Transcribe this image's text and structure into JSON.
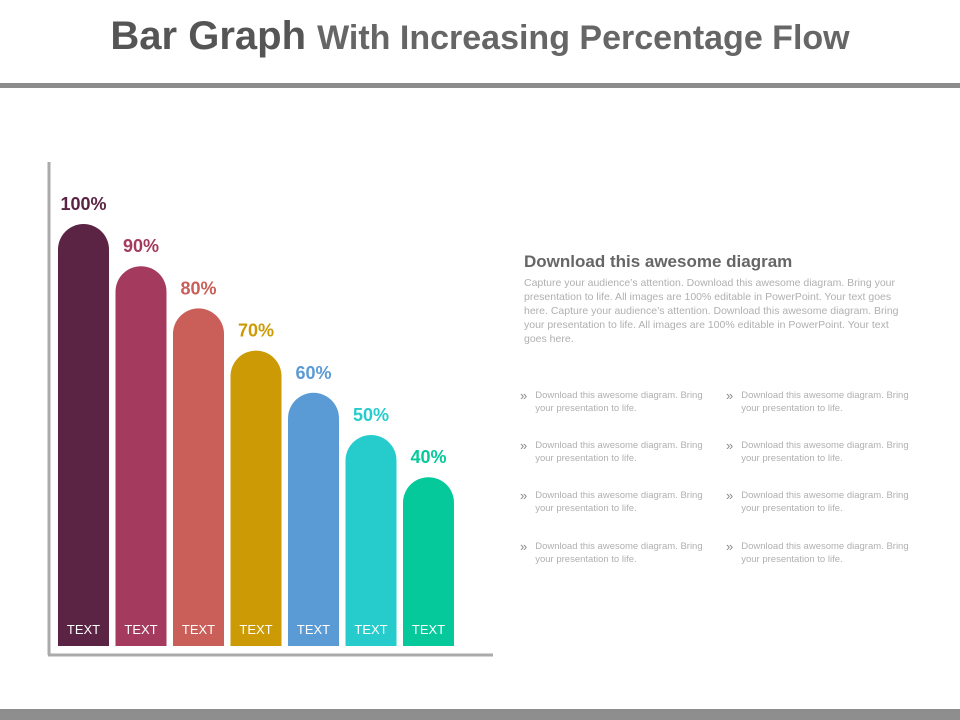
{
  "header": {
    "title_lead": "Bar Graph",
    "title_rest": "With Increasing Percentage Flow"
  },
  "chart_data": {
    "type": "bar",
    "categories": [
      "TEXT",
      "TEXT",
      "TEXT",
      "TEXT",
      "TEXT",
      "TEXT",
      "TEXT"
    ],
    "values": [
      100,
      90,
      80,
      70,
      60,
      50,
      40
    ],
    "value_labels": [
      "100%",
      "90%",
      "80%",
      "70%",
      "60%",
      "50%",
      "40%"
    ],
    "colors": [
      "#5c2444",
      "#a43a5d",
      "#ca5e58",
      "#cc9a05",
      "#5b9bd5",
      "#26cccc",
      "#05c99a"
    ],
    "title": "",
    "xlabel": "",
    "ylabel": "",
    "ylim": [
      0,
      100
    ],
    "grid": false,
    "legend": "none"
  },
  "description": {
    "title": "Download this awesome diagram",
    "body": "Capture your audience’s attention. Download this awesome diagram. Bring your presentation to life. All images are 100% editable in PowerPoint. Your text goes here. Capture your audience’s attention. Download this awesome diagram. Bring your presentation to life. All images are 100% editable in PowerPoint. Your text goes here."
  },
  "bullets": [
    {
      "text": "Download this awesome diagram. Bring your presentation to life."
    },
    {
      "text": "Download this awesome diagram. Bring your presentation to life."
    },
    {
      "text": "Download this awesome diagram. Bring your presentation to life."
    },
    {
      "text": "Download this awesome diagram. Bring your presentation to life."
    },
    {
      "text": "Download this awesome diagram. Bring your presentation to life."
    },
    {
      "text": "Download this awesome diagram. Bring your presentation to life."
    },
    {
      "text": "Download this awesome diagram. Bring your presentation to life."
    },
    {
      "text": "Download this awesome diagram. Bring your presentation to life."
    }
  ],
  "bullet_glyph": "»",
  "icons": {
    "bullet": "double-chevron-right-icon"
  }
}
